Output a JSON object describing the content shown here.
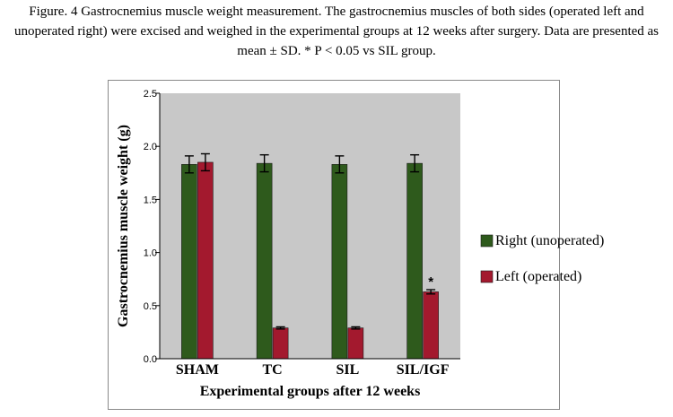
{
  "caption": "Figure. 4 Gastrocnemius muscle weight measurement. The gastrocnemius muscles of both sides (operated left and unoperated right) were excised and weighed in the experimental groups at 12 weeks after surgery. Data are presented as mean ± SD.    * P < 0.05 vs SIL group.",
  "chart_data": {
    "type": "bar",
    "xlabel": "Experimental groups after 12 weeks",
    "ylabel": "Gastrocnemius muscle weight (g)",
    "ylim": [
      0,
      2.5
    ],
    "yticks": [
      "0.0",
      "0.5",
      "1.0",
      "1.5",
      "2.0",
      "2.5"
    ],
    "categories": [
      "SHAM",
      "TC",
      "SIL",
      "SIL/IGF"
    ],
    "series": [
      {
        "name": "Right (unoperated)",
        "color": "#2e5a1c",
        "values": [
          1.83,
          1.84,
          1.83,
          1.84
        ],
        "errors": [
          0.08,
          0.08,
          0.08,
          0.08
        ]
      },
      {
        "name": "Left (operated)",
        "color": "#a3192e",
        "values": [
          1.85,
          0.29,
          0.29,
          0.63
        ],
        "errors": [
          0.08,
          0.01,
          0.01,
          0.02
        ]
      }
    ],
    "annotations": [
      {
        "text": "*",
        "category": "SIL/IGF",
        "series": "Left (operated)"
      }
    ],
    "grid": false,
    "legend_position": "right",
    "plot_background": "#c8c8c8"
  }
}
